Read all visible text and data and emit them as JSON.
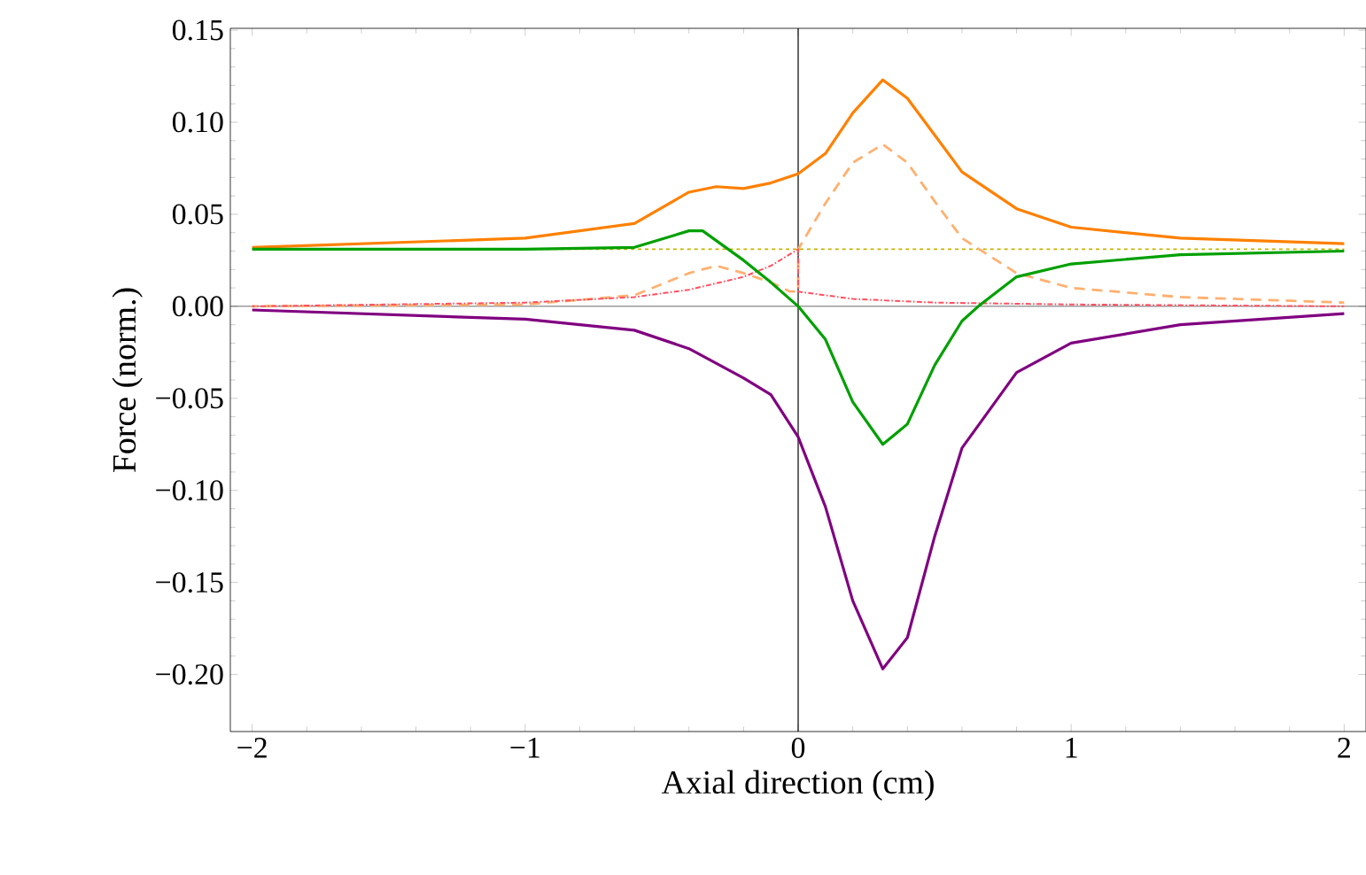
{
  "chart_data": {
    "type": "line",
    "xlabel": "Axial direction (cm)",
    "ylabel": "Force (norm.)",
    "xlim": [
      -2.08,
      2.08
    ],
    "ylim": [
      -0.231,
      0.151
    ],
    "xticks": [
      {
        "value": -2,
        "label": "−2"
      },
      {
        "value": -1,
        "label": "−1"
      },
      0,
      1,
      2
    ],
    "yticks": [
      {
        "value": -0.2,
        "label": "−0.20"
      },
      {
        "value": -0.15,
        "label": "−0.15"
      },
      {
        "value": -0.1,
        "label": "−0.10"
      },
      {
        "value": -0.05,
        "label": "−0.05"
      },
      {
        "value": 0,
        "label": "0.00"
      },
      0.05,
      {
        "value": 0.1,
        "label": "0.10"
      },
      0.15
    ],
    "grid": false,
    "marker": "none",
    "ref_lines": [
      {
        "axis": "x",
        "value": 0,
        "color": "#000000"
      },
      {
        "axis": "y",
        "value": 0,
        "color": "#444444"
      }
    ],
    "series": [
      {
        "color": "#c8b400",
        "line_style": "dotted",
        "x": [
          -2,
          2
        ],
        "values": [
          0.031,
          0.031
        ]
      },
      {
        "color": "#ffb070",
        "line_style": "dashed",
        "x": [
          -2,
          -1,
          -0.6,
          -0.4,
          -0.3,
          -0.2,
          -0.1,
          -0.03,
          0,
          0,
          0.1,
          0.2,
          0.31,
          0.4,
          0.5,
          0.6,
          0.8,
          1,
          1.4,
          2
        ],
        "values": [
          0,
          0.001,
          0.006,
          0.018,
          0.022,
          0.018,
          0.013,
          0.008,
          0.008,
          0.031,
          0.056,
          0.078,
          0.088,
          0.078,
          0.057,
          0.037,
          0.018,
          0.01,
          0.005,
          0.002
        ]
      },
      {
        "color": "#ff5060",
        "line_style": "dashdot",
        "x": [
          -2,
          -1,
          -0.6,
          -0.4,
          -0.2,
          -0.1,
          0,
          0,
          0.2,
          0.5,
          1,
          2
        ],
        "values": [
          0,
          0.002,
          0.005,
          0.009,
          0.016,
          0.022,
          0.031,
          0.008,
          0.004,
          0.002,
          0.001,
          0
        ]
      },
      {
        "color": "#ff8000",
        "line_style": "solid",
        "x": [
          -2,
          -1,
          -0.6,
          -0.4,
          -0.3,
          -0.2,
          -0.1,
          0,
          0.1,
          0.2,
          0.31,
          0.4,
          0.5,
          0.6,
          0.8,
          1,
          1.4,
          2
        ],
        "values": [
          0.032,
          0.037,
          0.045,
          0.062,
          0.065,
          0.064,
          0.067,
          0.072,
          0.083,
          0.105,
          0.123,
          0.113,
          0.093,
          0.073,
          0.053,
          0.043,
          0.037,
          0.034
        ]
      },
      {
        "color": "#00a000",
        "line_style": "solid",
        "x": [
          -2,
          -1,
          -0.6,
          -0.4,
          -0.35,
          -0.2,
          -0.1,
          0,
          0.1,
          0.2,
          0.31,
          0.4,
          0.5,
          0.6,
          0.66,
          0.8,
          1,
          1.4,
          2
        ],
        "values": [
          0.031,
          0.031,
          0.032,
          0.041,
          0.041,
          0.025,
          0.013,
          0,
          -0.018,
          -0.052,
          -0.075,
          -0.064,
          -0.032,
          -0.008,
          0,
          0.016,
          0.023,
          0.028,
          0.03
        ]
      },
      {
        "color": "#800080",
        "line_style": "solid",
        "x": [
          -2,
          -1,
          -0.6,
          -0.4,
          -0.2,
          -0.1,
          0,
          0.1,
          0.2,
          0.31,
          0.4,
          0.5,
          0.6,
          0.8,
          1,
          1.4,
          2
        ],
        "values": [
          -0.002,
          -0.007,
          -0.013,
          -0.023,
          -0.039,
          -0.048,
          -0.071,
          -0.109,
          -0.16,
          -0.197,
          -0.18,
          -0.125,
          -0.077,
          -0.036,
          -0.02,
          -0.01,
          -0.004
        ]
      }
    ]
  }
}
